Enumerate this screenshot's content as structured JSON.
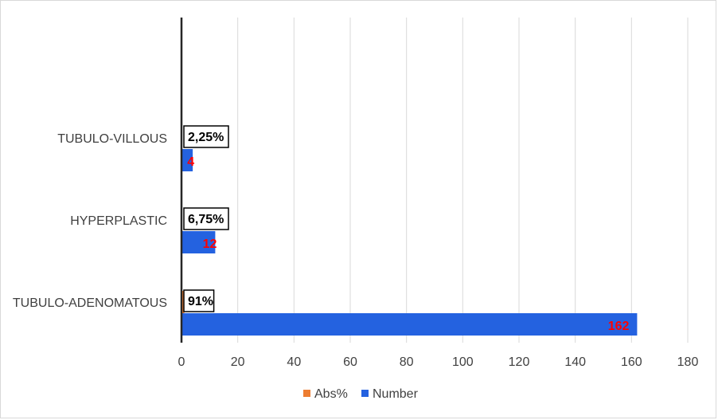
{
  "chart_data": {
    "type": "bar",
    "orientation": "horizontal",
    "categories": [
      "TUBULO-ADENOMATOUS",
      "HYPERPLASTIC",
      "TUBULO-VILLOUS"
    ],
    "series": [
      {
        "name": "Abs%",
        "values": [
          1,
          0,
          0
        ],
        "labels": [
          "91%",
          "6,75%",
          "2,25%"
        ],
        "color": "#ed7d31"
      },
      {
        "name": "Number",
        "values": [
          162,
          12,
          4
        ],
        "labels": [
          "162",
          "12",
          "4"
        ],
        "color": "#2462e0",
        "label_color": "#ff0000"
      }
    ],
    "xlim": [
      0,
      180
    ],
    "x_ticks": [
      "0",
      "20",
      "40",
      "60",
      "80",
      "100",
      "120",
      "140",
      "160",
      "180"
    ],
    "grid": true,
    "legend_position": "bottom",
    "title": "",
    "xlabel": "",
    "ylabel": ""
  }
}
